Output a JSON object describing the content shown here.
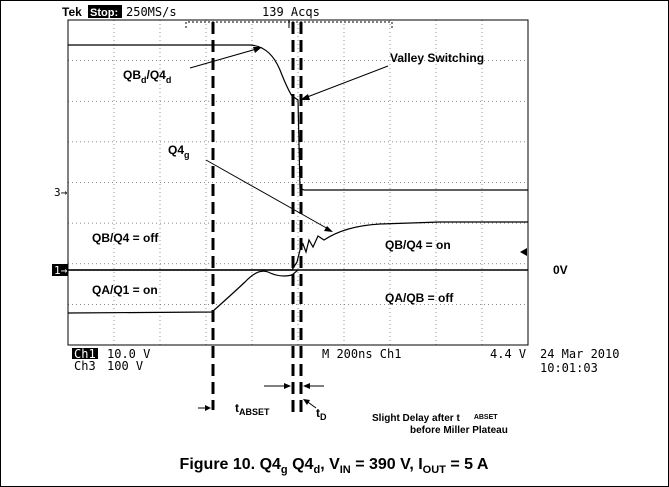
{
  "scope": {
    "brand": "Tek",
    "state": "Stop:",
    "rate": "250MS/s",
    "acqs": "139 Acqs",
    "marker3": "3→",
    "marker1": "1→",
    "ch1": "Ch1",
    "ch1_scale": "10.0 V",
    "ch3": "Ch3",
    "ch3_scale": "100 V",
    "timebase": "M 200ns Ch1",
    "trigger": "4.4 V",
    "date": "24 Mar 2010",
    "time": "10:01:03"
  },
  "annotations": {
    "qbd_a": "QB",
    "qbd_b": "d",
    "qbd_c": "/Q4",
    "qbd_d": "d",
    "valley": "Valley Switching",
    "q4g_a": "Q4",
    "q4g_b": "g",
    "qb_off": "QB/Q4 = off",
    "qb_on": "QB/Q4 = on",
    "qa_on": "QA/Q1 = on",
    "qa_off": "QA/QB = off",
    "zero": "0V",
    "tabset_a": "t",
    "tabset_b": "ABSET",
    "td_a": "t",
    "td_b": "D",
    "delay_a": "Slight Delay after t",
    "delay_b": "ABSET",
    "delay_c": "before Miller Plateau"
  },
  "caption": [
    "Figure 10. Q4",
    "g",
    " Q4",
    "d",
    ", V",
    "IN",
    " = 390 V, I",
    "OUT",
    " = 5 A"
  ]
}
